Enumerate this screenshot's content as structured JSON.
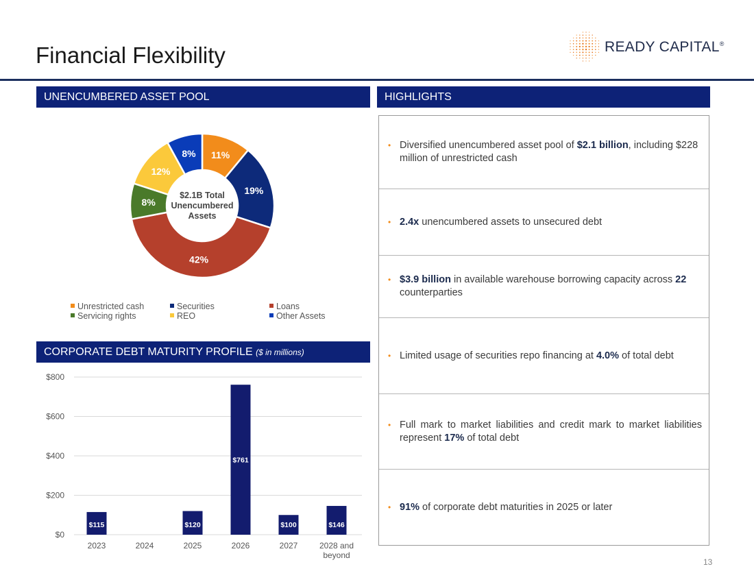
{
  "title": "Financial Flexibility",
  "logo": {
    "text": "READY CAPITAL",
    "trademark": "®"
  },
  "sections": {
    "asset_pool": "UNENCUMBERED ASSET POOL",
    "debt_profile": "CORPORATE DEBT MATURITY PROFILE",
    "debt_profile_sub": "($ in millions)",
    "highlights": "HIGHLIGHTS"
  },
  "highlights": [
    {
      "parts": [
        {
          "t": "Diversified unencumbered asset pool of "
        },
        {
          "t": "$2.1 billion",
          "b": true
        },
        {
          "t": ", including $228 million of unrestricted cash"
        }
      ]
    },
    {
      "parts": [
        {
          "t": "2.4x",
          "b": true
        },
        {
          "t": " unencumbered assets to unsecured debt"
        }
      ]
    },
    {
      "parts": [
        {
          "t": "$3.9 billion",
          "b": true
        },
        {
          "t": " in available warehouse borrowing capacity across "
        },
        {
          "t": "22",
          "b": true
        },
        {
          "t": " counterparties"
        }
      ]
    },
    {
      "parts": [
        {
          "t": "Limited usage of securities repo financing at "
        },
        {
          "t": "4.0%",
          "b": true
        },
        {
          "t": " of total debt"
        }
      ]
    },
    {
      "parts": [
        {
          "t": "Full mark to market liabilities and credit mark to market liabilities represent "
        },
        {
          "t": "17%",
          "b": true
        },
        {
          "t": " of total debt"
        }
      ],
      "justify": true
    },
    {
      "parts": [
        {
          "t": "91%",
          "b": true
        },
        {
          "t": " of corporate debt maturities in 2025 or later"
        }
      ]
    }
  ],
  "page_number": "13",
  "colors": {
    "navy": "#0d2277",
    "bar": "#131c6e",
    "orange": "#f28c1b",
    "blue": "#0d2a7a",
    "red": "#b5402c",
    "green": "#4a7a2a",
    "yellow": "#fbc93b",
    "other": "#0a3cb8"
  },
  "chart_data": [
    {
      "type": "pie",
      "donut": true,
      "center_label": [
        "$2.1B Total",
        "Unencumbered",
        "Assets"
      ],
      "slices": [
        {
          "label": "Unrestricted cash",
          "value": 11,
          "display": "11%",
          "color": "#f28c1b"
        },
        {
          "label": "Securities",
          "value": 19,
          "display": "19%",
          "color": "#0d2a7a"
        },
        {
          "label": "Loans",
          "value": 42,
          "display": "42%",
          "color": "#b5402c"
        },
        {
          "label": "Servicing rights",
          "value": 8,
          "display": "8%",
          "color": "#4a7a2a"
        },
        {
          "label": "REO",
          "value": 12,
          "display": "12%",
          "color": "#fbc93b"
        },
        {
          "label": "Other Assets",
          "value": 8,
          "display": "8%",
          "color": "#0a3cb8"
        }
      ],
      "legend_order": [
        "Unrestricted cash",
        "Securities",
        "Loans",
        "Servicing rights",
        "REO",
        "Other Assets"
      ],
      "legend": "bottom"
    },
    {
      "type": "bar",
      "categories": [
        "2023",
        "2024",
        "2025",
        "2026",
        "2027",
        "2028 and beyond"
      ],
      "values": [
        115,
        null,
        120,
        761,
        100,
        146
      ],
      "labels": [
        "$115",
        "",
        "$120",
        "$761",
        "$100",
        "$146"
      ],
      "ylim": [
        0,
        800
      ],
      "yticks": [
        0,
        200,
        400,
        600,
        800
      ],
      "ytick_labels": [
        "$0",
        "$200",
        "$400",
        "$600",
        "$800"
      ],
      "grid": true
    }
  ]
}
